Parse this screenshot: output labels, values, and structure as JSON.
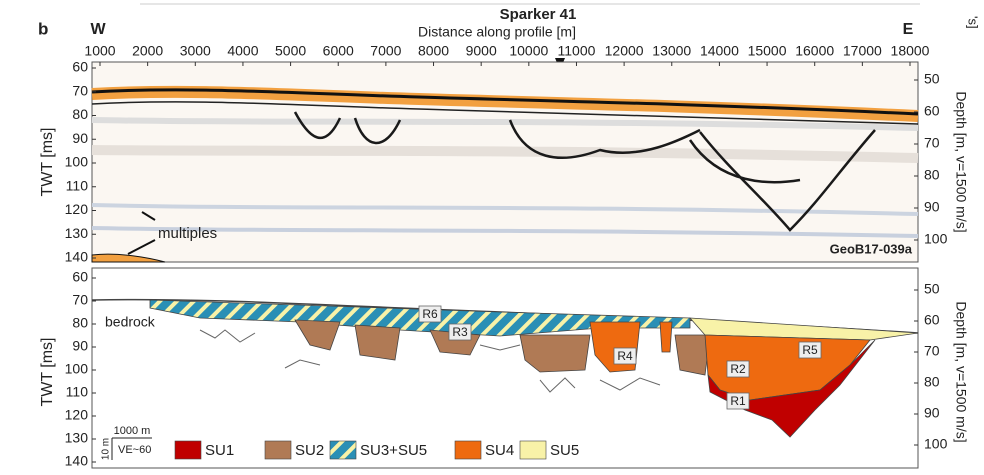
{
  "panel_label": "b",
  "title": "Sparker 41",
  "corner_fragment": "'s]",
  "x_axis": {
    "label": "Distance along profile [m]",
    "left": "W",
    "right": "E",
    "ticks": [
      1000,
      2000,
      3000,
      4000,
      5000,
      6000,
      7000,
      8000,
      9000,
      10000,
      11000,
      12000,
      13000,
      14000,
      15000,
      16000,
      17000,
      18000
    ],
    "lim": [
      1000,
      18000
    ]
  },
  "top_panel": {
    "y_label": "TWT [ms]",
    "y_ticks": [
      60,
      70,
      80,
      90,
      100,
      110,
      120,
      130,
      140
    ],
    "y_lim": [
      60,
      140
    ],
    "y2_label": "Depth [m, v=1500 m/s]",
    "y2_ticks": [
      50,
      60,
      70,
      80,
      90,
      100
    ],
    "annotation": "multiples",
    "core": "GeoB17-039a"
  },
  "bottom_panel": {
    "y_label": "TWT [ms]",
    "y_ticks": [
      60,
      70,
      80,
      90,
      100,
      110,
      120,
      130,
      140
    ],
    "y_lim": [
      60,
      140
    ],
    "y2_label": "Depth [m, v=1500 m/s]",
    "y2_ticks": [
      50,
      60,
      70,
      80,
      90,
      100
    ],
    "bedrock": "bedrock",
    "reflectors": [
      "R6",
      "R3",
      "R4",
      "R5",
      "R2",
      "R1"
    ],
    "scale": {
      "horizontal": "1000 m",
      "vertical": "10 m",
      "ve": "VE~60"
    },
    "legend": [
      {
        "name": "SU1",
        "color": "#c00000"
      },
      {
        "name": "SU2",
        "color": "#b07a55"
      },
      {
        "name": "SU3+SU5",
        "color": "#2a8fb5"
      },
      {
        "name": "SU4",
        "color": "#ee6a10"
      },
      {
        "name": "SU5",
        "color": "#f8f2a8"
      }
    ]
  }
}
